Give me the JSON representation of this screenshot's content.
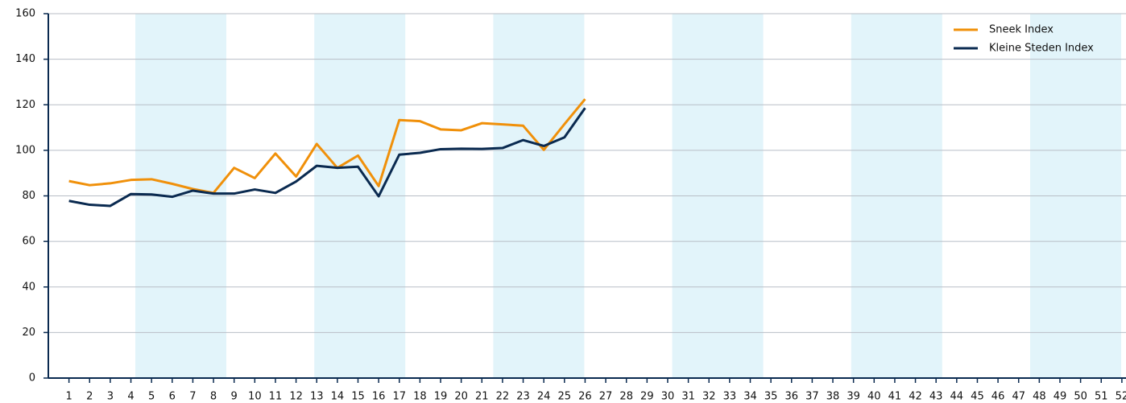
{
  "chart_data": {
    "type": "line",
    "x": [
      1,
      2,
      3,
      4,
      5,
      6,
      7,
      8,
      9,
      10,
      11,
      12,
      13,
      14,
      15,
      16,
      17,
      18,
      19,
      20,
      21,
      22,
      23,
      24,
      25,
      26,
      27,
      28,
      29,
      30,
      31,
      32,
      33,
      34,
      35,
      36,
      37,
      38,
      39,
      40,
      41,
      42,
      43,
      44,
      45,
      46,
      47,
      48,
      49,
      50,
      51,
      52
    ],
    "series": [
      {
        "name": "Sneek Index",
        "color": "#f0900a",
        "values": [
          86.5,
          84.7,
          85.5,
          87,
          87.3,
          85.3,
          83,
          81.3,
          92.3,
          87.8,
          98.6,
          88.5,
          102.8,
          92.3,
          97.7,
          84.3,
          113.3,
          112.8,
          109.2,
          108.8,
          111.9,
          111.4,
          110.8,
          100.2,
          111.5,
          122.5,
          null,
          null,
          null,
          null,
          null,
          null,
          null,
          null,
          null,
          null,
          null,
          null,
          null,
          null,
          null,
          null,
          null,
          null,
          null,
          null,
          null,
          null,
          null,
          null,
          null,
          null
        ]
      },
      {
        "name": "Kleine Steden Index",
        "color": "#0a2a50",
        "values": [
          77.8,
          76.1,
          75.6,
          80.8,
          80.6,
          79.6,
          82.3,
          81,
          81,
          82.8,
          81.3,
          86.3,
          93.2,
          92.3,
          92.8,
          79.8,
          98.1,
          98.9,
          100.5,
          100.7,
          100.6,
          101,
          104.5,
          101.9,
          105.7,
          118.6,
          null,
          null,
          null,
          null,
          null,
          null,
          null,
          null,
          null,
          null,
          null,
          null,
          null,
          null,
          null,
          null,
          null,
          null,
          null,
          null,
          null,
          null,
          null,
          null,
          null,
          null
        ]
      }
    ],
    "xlim": [
      0,
      52.2
    ],
    "ylim": [
      0,
      160
    ],
    "yticks": [
      0,
      20,
      40,
      60,
      80,
      100,
      120,
      140,
      160
    ],
    "grid": true,
    "legend": "top-right"
  }
}
